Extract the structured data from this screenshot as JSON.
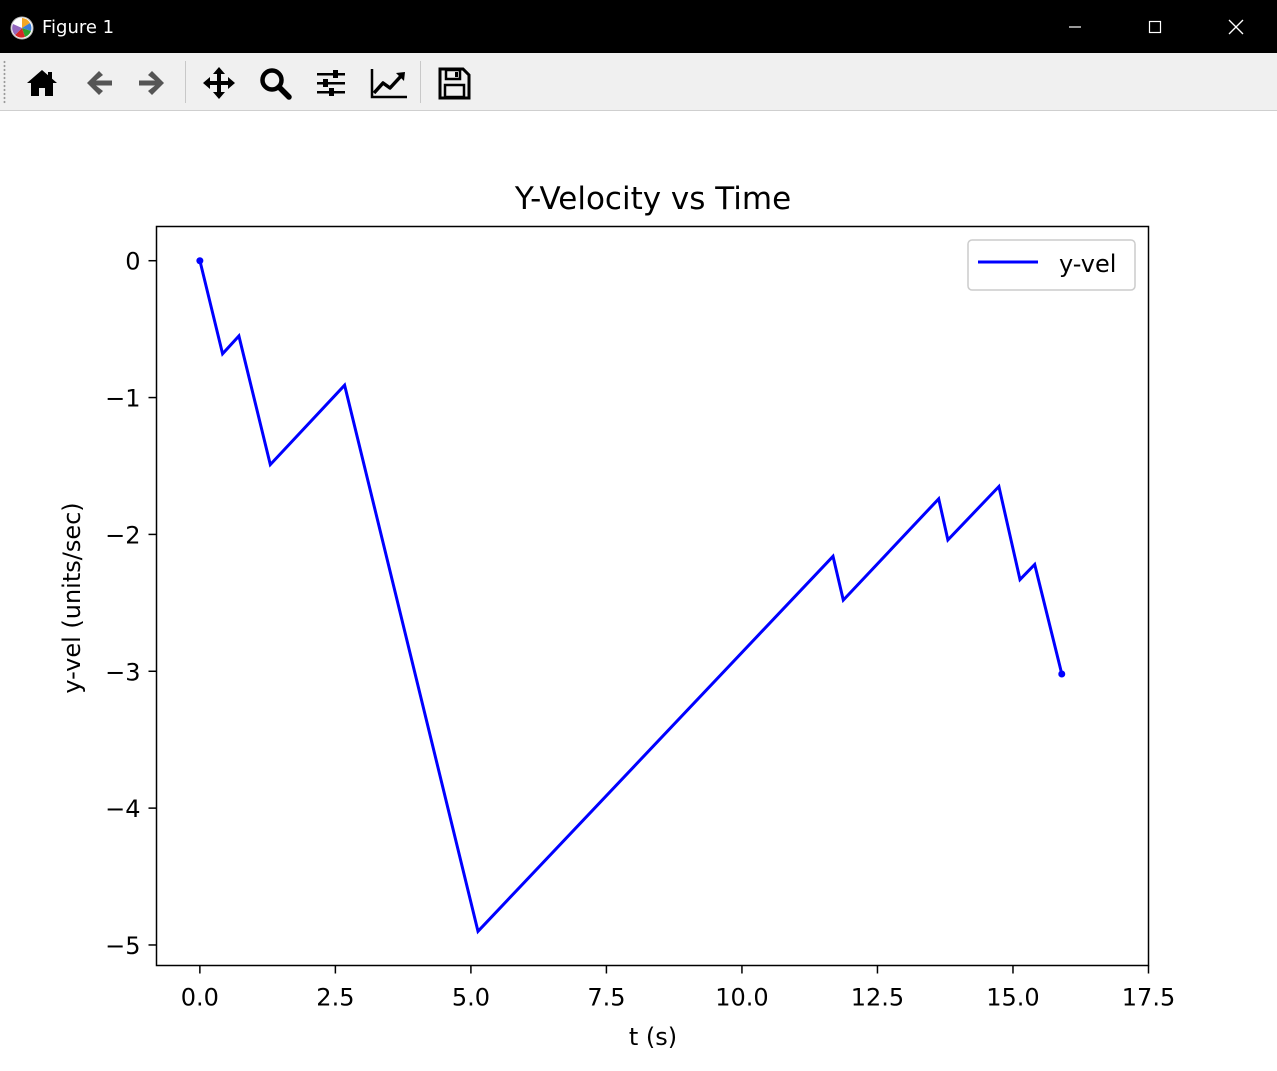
{
  "window": {
    "title": "Figure 1",
    "app_icon": "matplotlib-logo-icon",
    "controls": [
      "minimize-icon",
      "maximize-icon",
      "close-icon"
    ]
  },
  "toolbar": {
    "buttons": [
      {
        "name": "home-button",
        "icon": "home-icon"
      },
      {
        "name": "back-button",
        "icon": "arrow-left-icon"
      },
      {
        "name": "forward-button",
        "icon": "arrow-right-icon"
      },
      {
        "name": "pan-button",
        "icon": "move-arrows-icon"
      },
      {
        "name": "zoom-button",
        "icon": "magnifier-icon"
      },
      {
        "name": "configure-subplots-button",
        "icon": "sliders-icon"
      },
      {
        "name": "edit-axes-button",
        "icon": "line-chart-icon"
      },
      {
        "name": "save-button",
        "icon": "floppy-disk-icon"
      }
    ]
  },
  "chart_data": {
    "type": "line",
    "title": "Y-Velocity vs Time",
    "xlabel": "t (s)",
    "ylabel": "y-vel (units/sec)",
    "xlim": [
      -0.8,
      17.5
    ],
    "ylim": [
      -5.15,
      0.25
    ],
    "xticks": [
      0.0,
      2.5,
      5.0,
      7.5,
      10.0,
      12.5,
      15.0,
      17.5
    ],
    "xtick_labels": [
      "0.0",
      "2.5",
      "5.0",
      "7.5",
      "10.0",
      "12.5",
      "15.0",
      "17.5"
    ],
    "yticks": [
      0,
      -1,
      -2,
      -3,
      -4,
      -5
    ],
    "ytick_labels": [
      "0",
      "−1",
      "−2",
      "−3",
      "−4",
      "−5"
    ],
    "grid": false,
    "legend": {
      "position": "top-right"
    },
    "color": "#0000ff",
    "series": [
      {
        "name": "y-vel",
        "color": "#0000ff",
        "x": [
          0.0,
          0.42,
          0.72,
          1.3,
          2.67,
          5.13,
          11.68,
          11.87,
          13.63,
          13.8,
          14.74,
          15.13,
          15.4,
          15.9
        ],
        "y": [
          0.0,
          -0.68,
          -0.55,
          -1.49,
          -0.91,
          -4.9,
          -2.16,
          -2.48,
          -1.74,
          -2.04,
          -1.65,
          -2.33,
          -2.22,
          -3.02
        ]
      }
    ],
    "markers": [
      {
        "x": 0.0,
        "y": 0.0
      },
      {
        "x": 15.9,
        "y": -3.02
      }
    ]
  }
}
